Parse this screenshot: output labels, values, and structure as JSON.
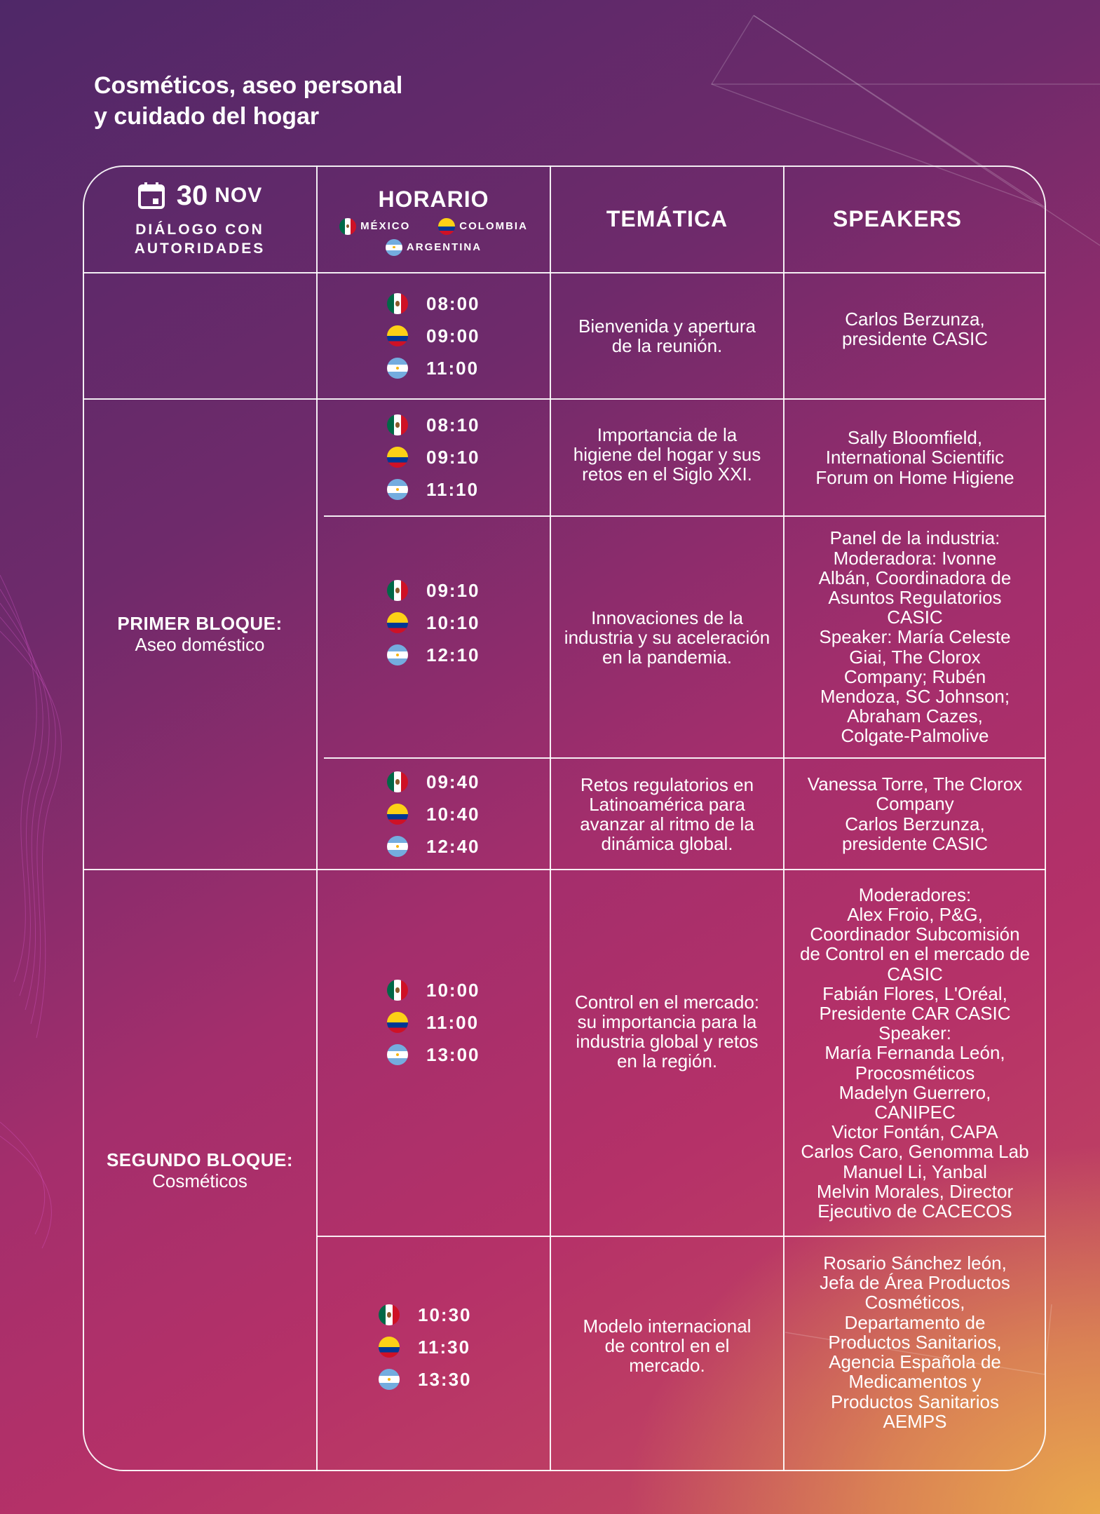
{
  "title": "Cosméticos, aseo personal\ny cuidado del hogar",
  "header": {
    "date_day": "30",
    "date_month": "NOV",
    "date_sub": "DIÁLOGO CON\nAUTORIDADES",
    "horario": "HORARIO",
    "tematica": "TEMÁTICA",
    "speakers": "SPEAKERS",
    "legend": {
      "mexico": "MÉXICO",
      "colombia": "COLOMBIA",
      "argentina": "ARGENTINA"
    }
  },
  "icons": {
    "date": "calendar-icon",
    "mexico": "mexico-flag-icon",
    "colombia": "colombia-flag-icon",
    "argentina": "argentina-flag-icon"
  },
  "blocks": [
    {
      "title": "PRIMER BLOQUE:",
      "subtitle": "Aseo doméstico"
    },
    {
      "title": "SEGUNDO BLOQUE:",
      "subtitle": "Cosméticos"
    }
  ],
  "rows": [
    {
      "times": [
        "08:00",
        "09:00",
        "11:00"
      ],
      "topic": "Bienvenida y apertura\nde la reunión.",
      "speakers": "Carlos Berzunza,\npresidente CASIC"
    },
    {
      "times": [
        "08:10",
        "09:10",
        "11:10"
      ],
      "topic": "Importancia de la\nhigiene del hogar y sus\nretos en el Siglo XXI.",
      "speakers": "Sally Bloomfield,\nInternational Scientific\nForum on Home Higiene"
    },
    {
      "times": [
        "09:10",
        "10:10",
        "12:10"
      ],
      "topic": "Innovaciones de la\nindustria y su aceleración\nen la pandemia.",
      "speakers": "Panel de la industria:\nModeradora: Ivonne\nAlbán,  Coordinadora de\nAsuntos Regulatorios\nCASIC\nSpeaker:  María Celeste\nGiai, The Clorox\nCompany; Rubén\nMendoza, SC Johnson;\nAbraham Cazes,\nColgate-Palmolive"
    },
    {
      "times": [
        "09:40",
        "10:40",
        "12:40"
      ],
      "topic": "Retos regulatorios en\nLatinoamérica para\navanzar al ritmo de la\ndinámica global.",
      "speakers": "Vanessa Torre, The Clorox\nCompany\nCarlos Berzunza,\npresidente CASIC"
    },
    {
      "times": [
        "10:00",
        "11:00",
        "13:00"
      ],
      "topic": "Control en el mercado:\nsu importancia para la\nindustria global y retos\nen la región.",
      "speakers": "Moderadores:\nAlex Froio, P&G,\nCoordinador Subcomisión\nde Control en el mercado de\nCASIC\nFabián Flores, L'Oréal,\nPresidente CAR CASIC\nSpeaker:\nMaría Fernanda León,\nProcosméticos\nMadelyn Guerrero,\nCANIPEC\nVictor Fontán, CAPA\nCarlos Caro, Genomma Lab\nManuel Li, Yanbal\nMelvin Morales, Director\nEjecutivo de CACECOS"
    },
    {
      "times": [
        "10:30",
        "11:30",
        "13:30"
      ],
      "topic": "Modelo internacional\nde control en el\nmercado.",
      "speakers": "Rosario Sánchez león,\nJefa de Área Productos\nCosméticos,\nDepartamento de\nProductos Sanitarios,\nAgencia Española de\nMedicamentos y\nProductos Sanitarios\nAEMPS"
    }
  ]
}
